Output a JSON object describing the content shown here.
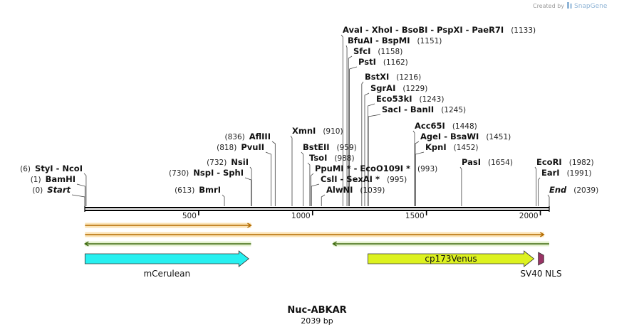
{
  "credit": {
    "text": "Created by",
    "brand": "SnapGene"
  },
  "title": "Nuc-ABKAR",
  "subtitle": "2039 bp",
  "sequence_length": 2039,
  "ticks": [
    "500",
    "1000",
    "1500",
    "2000"
  ],
  "sites": [
    {
      "type": "enzyme",
      "pos": 1133,
      "num": "(1133)",
      "label": "AvaI  - XhoI  - BsoBI  - PspXI  - PaeR7I",
      "side": "right"
    },
    {
      "type": "enzyme",
      "pos": 1151,
      "num": "(1151)",
      "label": "BfuAI  - BspMI",
      "side": "right"
    },
    {
      "type": "enzyme",
      "pos": 1158,
      "num": "(1158)",
      "label": "SfcI",
      "side": "right"
    },
    {
      "type": "enzyme",
      "pos": 1162,
      "num": "(1162)",
      "label": "PstI",
      "side": "right"
    },
    {
      "type": "enzyme",
      "pos": 1216,
      "num": "(1216)",
      "label": "BstXI",
      "side": "right"
    },
    {
      "type": "enzyme",
      "pos": 1229,
      "num": "(1229)",
      "label": "SgrAI",
      "side": "right"
    },
    {
      "type": "enzyme",
      "pos": 1243,
      "num": "(1243)",
      "label": "Eco53kI",
      "side": "right"
    },
    {
      "type": "enzyme",
      "pos": 1245,
      "num": "(1245)",
      "label": "SacI  - BanII",
      "side": "right"
    },
    {
      "type": "enzyme",
      "pos": 1448,
      "num": "(1448)",
      "label": "Acc65I",
      "side": "right"
    },
    {
      "type": "enzyme",
      "pos": 1451,
      "num": "(1451)",
      "label": "AgeI  - BsaWI",
      "side": "right"
    },
    {
      "type": "enzyme",
      "pos": 1452,
      "num": "(1452)",
      "label": "KpnI",
      "side": "right"
    },
    {
      "type": "enzyme",
      "pos": 1654,
      "num": "(1654)",
      "label": "PasI",
      "side": "right"
    },
    {
      "type": "enzyme",
      "pos": 1982,
      "num": "(1982)",
      "label": "EcoRI",
      "side": "right"
    },
    {
      "type": "enzyme",
      "pos": 1991,
      "num": "(1991)",
      "label": "EarI",
      "side": "right"
    },
    {
      "type": "end",
      "pos": 2039,
      "num": "(2039)",
      "label": "End",
      "side": "right"
    },
    {
      "type": "enzyme",
      "pos": 910,
      "num": "(910)",
      "label": "XmnI",
      "side": "right"
    },
    {
      "type": "enzyme",
      "pos": 959,
      "num": "(959)",
      "label": "BstEII",
      "side": "right"
    },
    {
      "type": "enzyme",
      "pos": 988,
      "num": "(988)",
      "label": "TsoI",
      "side": "right"
    },
    {
      "type": "enzyme",
      "pos": 993,
      "num": "(993)",
      "label": "PpuMI *  - EcoO109I *",
      "side": "right"
    },
    {
      "type": "enzyme",
      "pos": 995,
      "num": "(995)",
      "label": "CslI  - SexAI *",
      "side": "right"
    },
    {
      "type": "enzyme",
      "pos": 1039,
      "num": "(1039)",
      "label": "AlwNI",
      "side": "right"
    },
    {
      "type": "enzyme",
      "pos": 836,
      "num": "(836)",
      "label": "AflIII",
      "side": "left"
    },
    {
      "type": "enzyme",
      "pos": 818,
      "num": "(818)",
      "label": "PvuII",
      "side": "left"
    },
    {
      "type": "enzyme",
      "pos": 732,
      "num": "(732)",
      "label": "NsiI",
      "side": "left"
    },
    {
      "type": "enzyme",
      "pos": 730,
      "num": "(730)",
      "label": "NspI  - SphI",
      "side": "left"
    },
    {
      "type": "enzyme",
      "pos": 613,
      "num": "(613)",
      "label": "BmrI",
      "side": "left"
    },
    {
      "type": "enzyme",
      "pos": 6,
      "num": "(6)",
      "label": "StyI  - NcoI",
      "side": "left"
    },
    {
      "type": "enzyme",
      "pos": 1,
      "num": "(1)",
      "label": "BamHI",
      "side": "left"
    },
    {
      "type": "start",
      "pos": 0,
      "num": "(0)",
      "label": "Start",
      "side": "left"
    }
  ],
  "features": [
    {
      "name": "mCerulean",
      "start": 1,
      "end": 720,
      "direction": "forward",
      "color": "#27f0f0",
      "label_side": "below"
    },
    {
      "name": "cp173Venus",
      "start": 1243,
      "end": 1972,
      "direction": "forward",
      "color": "#ddf21f",
      "label_side": "inside"
    },
    {
      "name": "SV40 NLS",
      "start": 1991,
      "end": 2015,
      "direction": "forward",
      "color": "#993365",
      "label_side": "below"
    }
  ],
  "primers": [
    {
      "start": 1,
      "end": 730,
      "direction": "forward",
      "color": "#f5a623"
    },
    {
      "start": 1,
      "end": 2015,
      "direction": "forward",
      "color": "#f5a623"
    },
    {
      "start": 1,
      "end": 730,
      "direction": "reverse",
      "color": "#7ab827"
    },
    {
      "start": 1090,
      "end": 2039,
      "direction": "reverse",
      "color": "#7ab827"
    }
  ]
}
